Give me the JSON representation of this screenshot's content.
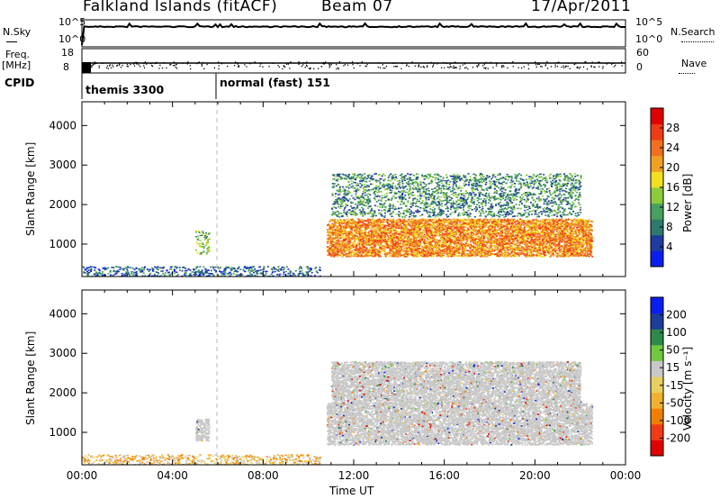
{
  "header": {
    "station": "Falkland Islands (fitACF)",
    "beam": "Beam 07",
    "date": "17/Apr/2011"
  },
  "status_panels": {
    "noise_left_label": "N.Sky",
    "noise_left_ticks": [
      "10^5",
      "10^0"
    ],
    "noise_right_label": "N.Search",
    "noise_right_ticks": [
      "10^5",
      "10^0"
    ],
    "freq_label_line1": "Freq.",
    "freq_label_line2": "[MHz]",
    "freq_ticks": [
      "18",
      "8"
    ],
    "nave_label": "Nave",
    "nave_ticks": [
      "60",
      "0"
    ],
    "cpid_label": "CPID",
    "cpid_segments": [
      {
        "name": "themis 3300",
        "start_hour": 0,
        "end_hour": 6.0
      },
      {
        "name": "normal (fast) 151",
        "start_hour": 6.0,
        "end_hour": 24
      }
    ]
  },
  "colors": {
    "power_scale": [
      "#0a1ef0",
      "#1e3ca0",
      "#2e7a6a",
      "#48a060",
      "#8ccc3c",
      "#f0e020",
      "#f0a020",
      "#f07020",
      "#f03c14",
      "#e00000"
    ],
    "velocity_scale": [
      "#e00000",
      "#f03c14",
      "#f08000",
      "#f0b030",
      "#e8d060",
      "#c8c8c8",
      "#70c840",
      "#2e8a4a",
      "#1e3c9c",
      "#0a1ef0"
    ],
    "ground_scatter": "#c8c8c8"
  },
  "chart_data": [
    {
      "type": "heatmap",
      "name": "power",
      "xlabel": "",
      "ylabel": "Slant Range [km]",
      "xlim": [
        0,
        24
      ],
      "ylim": [
        180,
        4600
      ],
      "yticks": [
        "1000",
        "2000",
        "3000",
        "4000"
      ],
      "colorbar_label": "Power [dB]",
      "colorbar_ticks": [
        "28",
        "24",
        "20",
        "16",
        "12",
        "8",
        "4"
      ],
      "colorbar_range": [
        0,
        32
      ],
      "regions": [
        {
          "hour_start": 10.8,
          "hour_end": 22.5,
          "range_low": 700,
          "range_high": 1650,
          "level": 22
        },
        {
          "hour_start": 11.0,
          "hour_end": 22.0,
          "range_low": 1700,
          "range_high": 2800,
          "level": 10
        },
        {
          "hour_start": 5.0,
          "hour_end": 5.6,
          "range_low": 750,
          "range_high": 1350,
          "level": 14
        },
        {
          "hour_start": 0.0,
          "hour_end": 10.5,
          "range_low": 180,
          "range_high": 450,
          "level": 6
        }
      ]
    },
    {
      "type": "heatmap",
      "name": "velocity",
      "xlabel": "Time UT",
      "ylabel": "Slant Range [km]",
      "xlim": [
        0,
        24
      ],
      "ylim": [
        180,
        4600
      ],
      "xticks": [
        "00:00",
        "04:00",
        "08:00",
        "12:00",
        "16:00",
        "20:00",
        "00:00"
      ],
      "yticks": [
        "1000",
        "2000",
        "3000",
        "4000"
      ],
      "colorbar_label": "Velocity [m s⁻¹]",
      "colorbar_ticks": [
        "200",
        "100",
        "50",
        "15",
        "-15",
        "-50",
        "-100",
        "-200"
      ],
      "colorbar_range": [
        -250,
        250
      ],
      "regions": [
        {
          "hour_start": 10.8,
          "hour_end": 22.5,
          "range_low": 700,
          "range_high": 1750,
          "velocity": 0
        },
        {
          "hour_start": 11.0,
          "hour_end": 22.0,
          "range_low": 1750,
          "range_high": 2800,
          "velocity": 0
        },
        {
          "hour_start": 5.0,
          "hour_end": 5.6,
          "range_low": 800,
          "range_high": 1350,
          "velocity": 0
        },
        {
          "hour_start": 0.0,
          "hour_end": 10.5,
          "range_low": 180,
          "range_high": 450,
          "velocity": -40
        }
      ]
    }
  ]
}
